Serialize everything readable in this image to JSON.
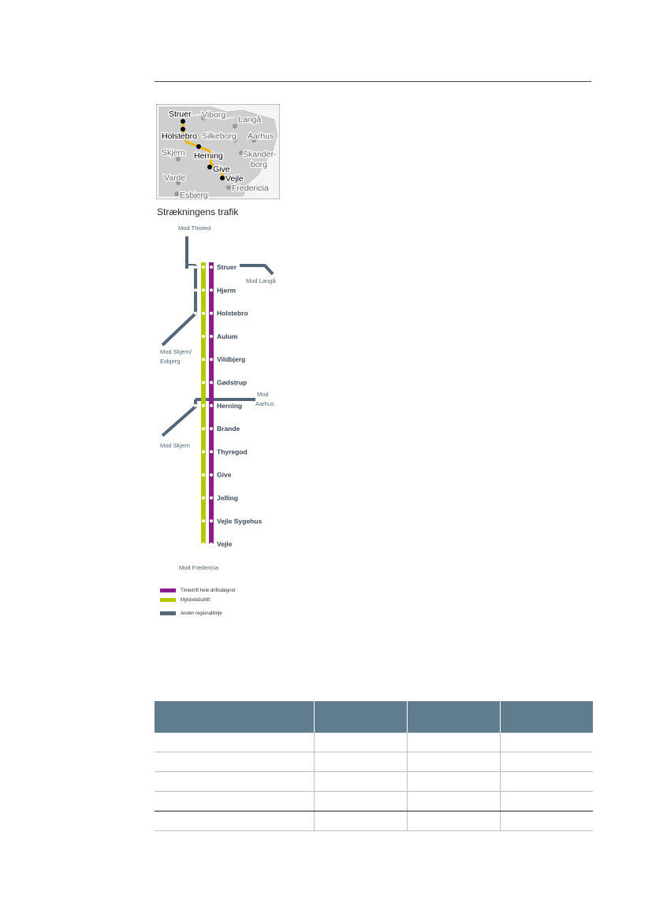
{
  "map": {
    "towns": {
      "struer": "Struer",
      "viborg": "Viborg",
      "langaa": "Langå",
      "holstebro": "Holstebro",
      "silkeborg": "Silkeborg",
      "aarhus": "Aarhus",
      "skjern": "Skjern",
      "herning": "Herning",
      "skanderborg_1": "Skander-",
      "skanderborg_2": "borg",
      "give": "Give",
      "varde": "Varde",
      "vejle": "Vejle",
      "fredericia": "Fredericia",
      "esbjerg": "Esbjerg"
    },
    "colors": {
      "land": "#cfcfcf",
      "sea": "#f4f4f4",
      "route": "#f0b400",
      "frame": "#888888"
    }
  },
  "diagram": {
    "title": "Strækningens trafik",
    "stations": [
      "Struer",
      "Hjerm",
      "Holstebro",
      "Aulum",
      "Vildbjerg",
      "Gødstrup",
      "Herning",
      "Brande",
      "Thyregod",
      "Give",
      "Jelling",
      "Vejle Sygehus",
      "Vejle"
    ],
    "branches": {
      "thisted": "Mod Thisted",
      "langaa": "Mod Langå",
      "skjern_esbjerg_1": "Mod Skjern/",
      "skjern_esbjerg_2": "Esbjerg",
      "aarhus_1": "Mod",
      "aarhus_2": "Aarhus",
      "skjern": "Mod Skjern",
      "fredericia": "Mod Fredericia"
    },
    "colors": {
      "hourly": "#8b1a8c",
      "rush": "#b5c800",
      "regional": "#546778"
    }
  },
  "legend": [
    {
      "label": "Timedrift hele driftsdøgnet",
      "color": "#8b1a8c"
    },
    {
      "label": "Myldretidsdrift",
      "color": "#b5c800"
    },
    {
      "label": "Anden regionaltlinje",
      "color": "#546778"
    }
  ],
  "table": {
    "header_color": "#607d8f",
    "columns": [
      "",
      "",
      "",
      ""
    ],
    "rows": [
      [
        "",
        "",
        "",
        ""
      ],
      [
        "",
        "",
        "",
        ""
      ],
      [
        "",
        "",
        "",
        ""
      ],
      [
        "",
        "",
        "",
        ""
      ],
      [
        "",
        "",
        "",
        ""
      ]
    ]
  }
}
